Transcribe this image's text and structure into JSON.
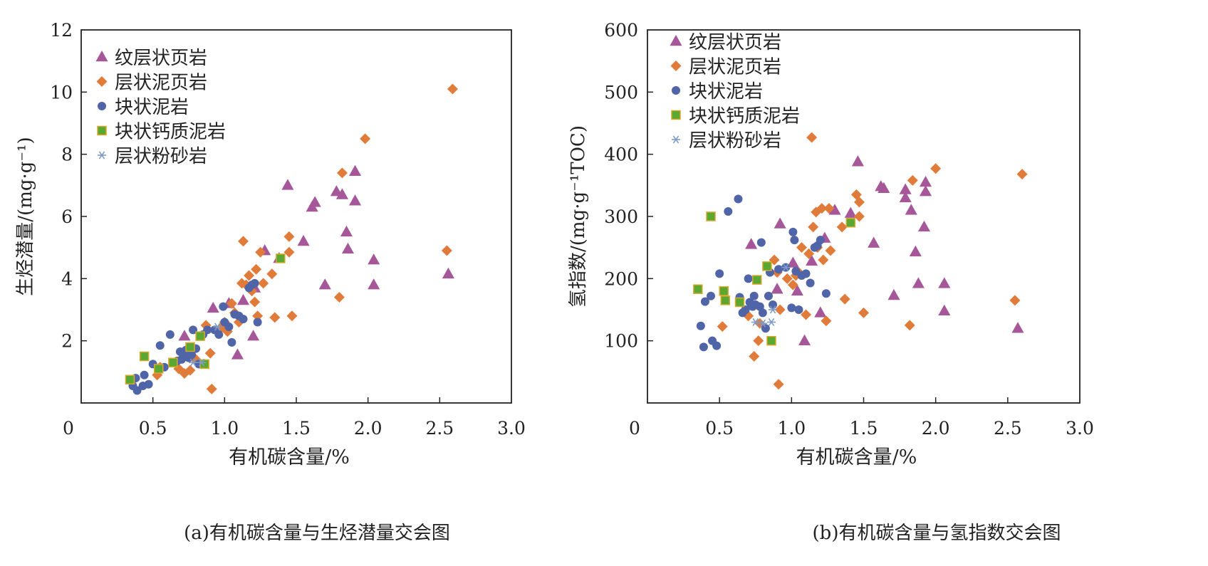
{
  "figure": {
    "caption_a": "(a)有机碳含量与生烃潜量交会图",
    "caption_b": "(b)有机碳含量与氢指数交会图"
  },
  "chart_data": [
    {
      "type": "scatter",
      "title": "",
      "xlabel": "有机碳含量/%",
      "ylabel": "生烃潜量/(mg·g⁻¹)",
      "xlim": [
        0,
        3.0
      ],
      "ylim": [
        0,
        12
      ],
      "xticks": [
        "0",
        "0.5",
        "1.0",
        "1.5",
        "2.0",
        "2.5",
        "3.0"
      ],
      "xtick_values": [
        0,
        0.5,
        1.0,
        1.5,
        2.0,
        2.5,
        3.0
      ],
      "yticks": [
        "2",
        "4",
        "6",
        "8",
        "10",
        "12"
      ],
      "ytick_values": [
        2,
        4,
        6,
        8,
        10,
        12
      ],
      "grid": false,
      "legend_position": "top-left",
      "series": [
        {
          "name": "纹层状页岩",
          "marker": "triangle",
          "color": "#a6579a",
          "points": [
            [
              0.72,
              2.15
            ],
            [
              0.92,
              3.05
            ],
            [
              1.03,
              3.2
            ],
            [
              1.09,
              1.55
            ],
            [
              1.13,
              3.3
            ],
            [
              1.2,
              2.15
            ],
            [
              1.21,
              3.7
            ],
            [
              1.28,
              4.9
            ],
            [
              1.38,
              4.65
            ],
            [
              1.44,
              7.0
            ],
            [
              1.55,
              5.2
            ],
            [
              1.61,
              6.3
            ],
            [
              1.63,
              6.45
            ],
            [
              1.7,
              3.8
            ],
            [
              1.78,
              6.8
            ],
            [
              1.82,
              6.7
            ],
            [
              1.85,
              5.5
            ],
            [
              1.86,
              4.95
            ],
            [
              1.91,
              6.5
            ],
            [
              1.91,
              7.45
            ],
            [
              2.04,
              4.6
            ],
            [
              2.04,
              3.8
            ],
            [
              2.56,
              4.15
            ]
          ]
        },
        {
          "name": "层状泥页岩",
          "marker": "diamond",
          "color": "#e07b3a",
          "points": [
            [
              0.53,
              0.9
            ],
            [
              0.55,
              1.15
            ],
            [
              0.68,
              1.1
            ],
            [
              0.72,
              0.95
            ],
            [
              0.76,
              1.05
            ],
            [
              0.8,
              1.4
            ],
            [
              0.87,
              2.5
            ],
            [
              0.9,
              1.6
            ],
            [
              0.91,
              0.45
            ],
            [
              0.97,
              2.4
            ],
            [
              1.0,
              2.6
            ],
            [
              1.02,
              2.3
            ],
            [
              1.05,
              3.2
            ],
            [
              1.07,
              2.9
            ],
            [
              1.1,
              2.6
            ],
            [
              1.12,
              3.85
            ],
            [
              1.13,
              5.2
            ],
            [
              1.15,
              3.8
            ],
            [
              1.17,
              4.1
            ],
            [
              1.19,
              3.6
            ],
            [
              1.21,
              3.25
            ],
            [
              1.22,
              4.3
            ],
            [
              1.23,
              2.8
            ],
            [
              1.25,
              4.85
            ],
            [
              1.27,
              3.85
            ],
            [
              1.33,
              4.15
            ],
            [
              1.35,
              2.75
            ],
            [
              1.45,
              5.35
            ],
            [
              1.45,
              4.85
            ],
            [
              1.47,
              2.8
            ],
            [
              1.8,
              3.4
            ],
            [
              1.82,
              7.4
            ],
            [
              1.98,
              8.5
            ],
            [
              2.55,
              4.9
            ],
            [
              2.59,
              10.1
            ]
          ]
        },
        {
          "name": "块状泥岩",
          "marker": "circle",
          "color": "#5064a8",
          "points": [
            [
              0.36,
              0.55
            ],
            [
              0.38,
              0.8
            ],
            [
              0.39,
              0.4
            ],
            [
              0.43,
              0.55
            ],
            [
              0.44,
              0.9
            ],
            [
              0.47,
              0.6
            ],
            [
              0.5,
              1.25
            ],
            [
              0.55,
              1.85
            ],
            [
              0.58,
              1.15
            ],
            [
              0.62,
              2.2
            ],
            [
              0.65,
              1.3
            ],
            [
              0.67,
              1.35
            ],
            [
              0.69,
              1.65
            ],
            [
              0.7,
              1.4
            ],
            [
              0.72,
              1.5
            ],
            [
              0.73,
              1.7
            ],
            [
              0.74,
              1.6
            ],
            [
              0.75,
              1.45
            ],
            [
              0.77,
              1.55
            ],
            [
              0.78,
              2.35
            ],
            [
              0.8,
              1.75
            ],
            [
              0.82,
              1.25
            ],
            [
              0.85,
              2.2
            ],
            [
              0.88,
              2.35
            ],
            [
              0.93,
              2.35
            ],
            [
              0.96,
              2.2
            ],
            [
              0.99,
              3.1
            ],
            [
              1.0,
              2.6
            ],
            [
              1.03,
              2.45
            ],
            [
              1.05,
              1.95
            ],
            [
              1.07,
              2.85
            ],
            [
              1.1,
              2.8
            ],
            [
              1.13,
              2.7
            ],
            [
              1.17,
              3.7
            ],
            [
              1.19,
              3.8
            ],
            [
              1.21,
              3.85
            ],
            [
              1.23,
              2.6
            ]
          ]
        },
        {
          "name": "块状钙质泥岩",
          "marker": "square",
          "color": "#5aa832",
          "points": [
            [
              0.34,
              0.75
            ],
            [
              0.44,
              1.5
            ],
            [
              0.54,
              1.1
            ],
            [
              0.64,
              1.3
            ],
            [
              0.76,
              1.8
            ],
            [
              0.83,
              2.15
            ],
            [
              0.86,
              1.25
            ],
            [
              1.39,
              4.65
            ]
          ]
        },
        {
          "name": "层状粉砂岩",
          "marker": "star",
          "color": "#7e9cc6",
          "points": [
            [
              0.78,
              1.3
            ],
            [
              0.84,
              1.3
            ],
            [
              0.95,
              2.45
            ]
          ]
        }
      ]
    },
    {
      "type": "scatter",
      "title": "",
      "xlabel": "有机碳含量/%",
      "ylabel": "氢指数/(mg·g⁻¹TOC)",
      "xlim": [
        0,
        3.0
      ],
      "ylim": [
        0,
        600
      ],
      "xticks": [
        "0",
        "0.5",
        "1.0",
        "1.5",
        "2.0",
        "2.5",
        "3.0"
      ],
      "xtick_values": [
        0,
        0.5,
        1.0,
        1.5,
        2.0,
        2.5,
        3.0
      ],
      "yticks": [
        "100",
        "200",
        "300",
        "400",
        "500",
        "600"
      ],
      "ytick_values": [
        100,
        200,
        300,
        400,
        500,
        600
      ],
      "grid": false,
      "legend_position": "top-left",
      "series": [
        {
          "name": "纹层状页岩",
          "marker": "triangle",
          "color": "#a6579a",
          "points": [
            [
              0.72,
              255
            ],
            [
              0.9,
              183
            ],
            [
              0.92,
              288
            ],
            [
              1.01,
              225
            ],
            [
              1.04,
              180
            ],
            [
              1.09,
              100
            ],
            [
              1.14,
              228
            ],
            [
              1.2,
              145
            ],
            [
              1.23,
              265
            ],
            [
              1.3,
              310
            ],
            [
              1.41,
              305
            ],
            [
              1.46,
              388
            ],
            [
              1.57,
              257
            ],
            [
              1.62,
              348
            ],
            [
              1.64,
              345
            ],
            [
              1.71,
              173
            ],
            [
              1.79,
              343
            ],
            [
              1.79,
              330
            ],
            [
              1.83,
              310
            ],
            [
              1.86,
              243
            ],
            [
              1.88,
              192
            ],
            [
              1.92,
              283
            ],
            [
              1.93,
              340
            ],
            [
              1.93,
              355
            ],
            [
              2.06,
              192
            ],
            [
              2.06,
              148
            ],
            [
              2.57,
              120
            ]
          ]
        },
        {
          "name": "层状泥页岩",
          "marker": "diamond",
          "color": "#e07b3a",
          "points": [
            [
              0.52,
              123
            ],
            [
              0.7,
              140
            ],
            [
              0.74,
              75
            ],
            [
              0.77,
              100
            ],
            [
              0.78,
              128
            ],
            [
              0.88,
              230
            ],
            [
              0.9,
              210
            ],
            [
              0.91,
              30
            ],
            [
              0.92,
              150
            ],
            [
              0.97,
              200
            ],
            [
              1.01,
              190
            ],
            [
              1.03,
              205
            ],
            [
              1.05,
              210
            ],
            [
              1.07,
              250
            ],
            [
              1.1,
              142
            ],
            [
              1.12,
              240
            ],
            [
              1.14,
              427
            ],
            [
              1.15,
              283
            ],
            [
              1.17,
              307
            ],
            [
              1.18,
              250
            ],
            [
              1.21,
              313
            ],
            [
              1.22,
              230
            ],
            [
              1.24,
              132
            ],
            [
              1.26,
              313
            ],
            [
              1.27,
              245
            ],
            [
              1.35,
              283
            ],
            [
              1.37,
              167
            ],
            [
              1.45,
              335
            ],
            [
              1.47,
              300
            ],
            [
              1.47,
              323
            ],
            [
              1.5,
              145
            ],
            [
              1.82,
              125
            ],
            [
              1.84,
              358
            ],
            [
              2.0,
              377
            ],
            [
              2.55,
              165
            ],
            [
              2.6,
              368
            ]
          ]
        },
        {
          "name": "块状泥岩",
          "marker": "circle",
          "color": "#5064a8",
          "points": [
            [
              0.37,
              124
            ],
            [
              0.39,
              90
            ],
            [
              0.4,
              163
            ],
            [
              0.44,
              172
            ],
            [
              0.45,
              100
            ],
            [
              0.48,
              92
            ],
            [
              0.5,
              208
            ],
            [
              0.56,
              308
            ],
            [
              0.63,
              328
            ],
            [
              0.64,
              170
            ],
            [
              0.66,
              145
            ],
            [
              0.68,
              150
            ],
            [
              0.7,
              200
            ],
            [
              0.71,
              162
            ],
            [
              0.72,
              158
            ],
            [
              0.73,
              155
            ],
            [
              0.74,
              172
            ],
            [
              0.75,
              158
            ],
            [
              0.78,
              155
            ],
            [
              0.79,
              258
            ],
            [
              0.8,
              145
            ],
            [
              0.82,
              120
            ],
            [
              0.84,
              172
            ],
            [
              0.85,
              210
            ],
            [
              0.87,
              158
            ],
            [
              0.91,
              215
            ],
            [
              0.96,
              218
            ],
            [
              1.0,
              153
            ],
            [
              1.01,
              275
            ],
            [
              1.02,
              262
            ],
            [
              1.03,
              212
            ],
            [
              1.05,
              150
            ],
            [
              1.07,
              205
            ],
            [
              1.1,
              208
            ],
            [
              1.13,
              193
            ],
            [
              1.16,
              250
            ],
            [
              1.18,
              253
            ],
            [
              1.2,
              262
            ],
            [
              1.24,
              176
            ]
          ]
        },
        {
          "name": "块状钙质泥岩",
          "marker": "square",
          "color": "#5aa832",
          "points": [
            [
              0.35,
              183
            ],
            [
              0.44,
              300
            ],
            [
              0.53,
              180
            ],
            [
              0.54,
              165
            ],
            [
              0.64,
              162
            ],
            [
              0.76,
              198
            ],
            [
              0.83,
              220
            ],
            [
              0.86,
              100
            ],
            [
              1.41,
              290
            ]
          ]
        },
        {
          "name": "层状粉砂岩",
          "marker": "star",
          "color": "#7e9cc6",
          "points": [
            [
              0.75,
              130
            ],
            [
              0.8,
              128
            ],
            [
              0.86,
              130
            ],
            [
              0.87,
              150
            ],
            [
              0.96,
              218
            ]
          ]
        }
      ]
    }
  ]
}
